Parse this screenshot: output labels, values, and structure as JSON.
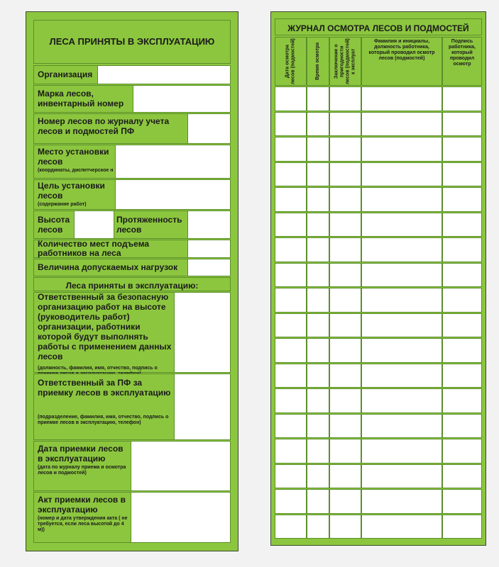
{
  "form": {
    "title": "ЛЕСА ПРИНЯТЫ В ЭКСПЛУАТАЦИЮ",
    "fields": [
      {
        "label": "Организация"
      },
      {
        "label": "Марка лесов, инвентарный номер"
      },
      {
        "label": "Номер лесов по журналу учета лесов и подмостей ПФ"
      },
      {
        "label": "Место установки лесов",
        "note": "(координаты, диспетчерское н"
      },
      {
        "label": "Цель установки лесов",
        "note": "(содержание работ)"
      },
      {
        "label": "Высота лесов"
      },
      {
        "label": "Протяженность лесов"
      },
      {
        "label": "Количество мест подъема работников на леса"
      },
      {
        "label": "Величина допускаемых нагрузок"
      }
    ],
    "section_header": "Леса приняты в эксплуатацию:",
    "acceptance_fields": [
      {
        "label": "Ответственный за безопасную организацию работ на высоте (руководитель работ) организации, работники которой будут выполнять работы с применением данных лесов",
        "note": "(должность, фамилия, имя, отчество, подпись о приемке лесов в эксплуатацию, телефон)"
      },
      {
        "label": "Ответственный за ПФ за приемку лесов в эксплуатацию",
        "note": "(подразделение, фамилия, имя, отчество, подпись о приемке лесов в эксплуатацию, телефон)"
      },
      {
        "label": "Дата приемки лесов в эксплуатацию",
        "note": "(дата по журналу приема и осмотра лесов и подмостей)"
      },
      {
        "label": "Акт приемки лесов в эксплуатацию",
        "note": "(номер и дата утверждения акта ( не требуется, если леса высотой до 4 м))"
      }
    ]
  },
  "journal": {
    "title": "ЖУРНАЛ ОСМОТРА ЛЕСОВ И ПОДМОСТЕЙ",
    "columns": [
      "Дата осмотра лесов (подмостей)",
      "Время осмотра",
      "Заключение о пригодности лесов (подмостей) к эксплуат",
      "Фамилия и инициалы, должность работника, который проводил осмотр лесов (подмостей)",
      "Подпись работника, который проводил осмотр"
    ]
  }
}
